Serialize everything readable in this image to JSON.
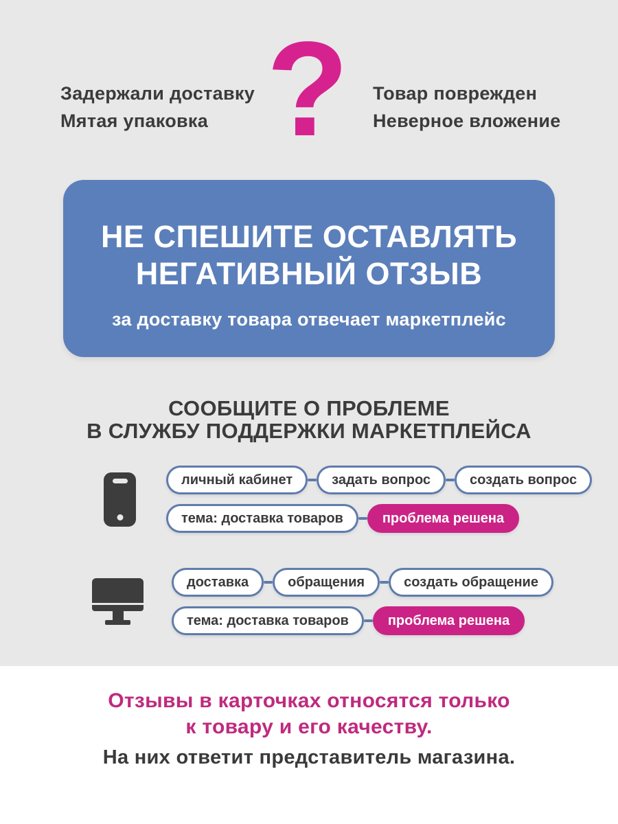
{
  "colors": {
    "background": "#e9e8e8",
    "banner_blue": "#5b7fba",
    "pill_border_blue": "#5f7cab",
    "magenta_accent": "#ca2385",
    "question_mark_magenta": "#d6228f",
    "footer_accent_magenta": "#bf2a7e",
    "dark_text": "#3b3b3b",
    "icon_dark": "#3d3d3d"
  },
  "intro": {
    "question_mark": "?",
    "left_issues": [
      "Задержали доставку",
      "Мятая упаковка"
    ],
    "right_issues": [
      "Товар поврежден",
      "Неверное вложение"
    ]
  },
  "banner": {
    "title_line1": "НЕ СПЕШИТЕ ОСТАВЛЯТЬ",
    "title_line2": "НЕГАТИВНЫЙ ОТЗЫВ",
    "subtitle": "за доставку товара отвечает маркетплейс"
  },
  "support": {
    "heading_line1": "СООБЩИТЕ О ПРОБЛЕМЕ",
    "heading_line2": "В СЛУЖБУ ПОДДЕРЖКИ МАРКЕТПЛЕЙСА",
    "phone_flow": {
      "icon": "smartphone-icon",
      "steps": [
        "личный кабинет",
        "задать вопрос",
        "создать вопрос"
      ],
      "topic": "тема: доставка товаров",
      "status": "проблема решена"
    },
    "desktop_flow": {
      "icon": "desktop-icon",
      "steps": [
        "доставка",
        "обращения",
        "создать обращение"
      ],
      "topic": "тема: доставка товаров",
      "status": "проблема решена"
    }
  },
  "footer": {
    "accent_line1": "Отзывы в карточках относятся только",
    "accent_line2": "к товару и его качеству.",
    "note": "На них ответит представитель магазина."
  }
}
